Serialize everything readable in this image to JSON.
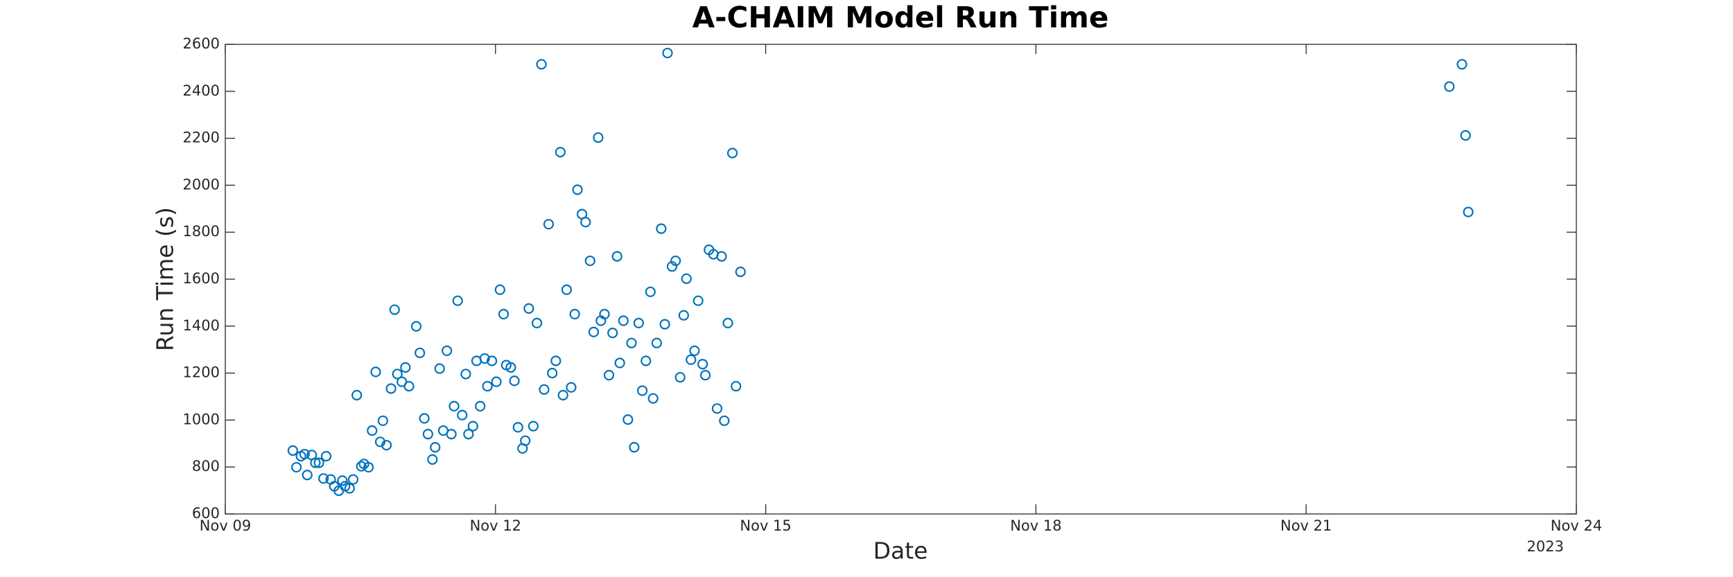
{
  "chart_data": {
    "type": "scatter",
    "title": "A-CHAIM Model Run Time",
    "x_label": "Date",
    "y_label": "Run Time (s)",
    "x_offset_label": "2023",
    "series": [
      {
        "color": "#0072bd",
        "x": [
          0.75,
          0.79,
          0.84,
          0.88,
          0.91,
          0.96,
          1.0,
          1.04,
          1.09,
          1.12,
          1.17,
          1.21,
          1.26,
          1.3,
          1.33,
          1.38,
          1.42,
          1.46,
          1.51,
          1.54,
          1.59,
          1.63,
          1.67,
          1.72,
          1.75,
          1.79,
          1.84,
          1.88,
          1.91,
          1.96,
          2.0,
          2.04,
          2.12,
          2.16,
          2.21,
          2.25,
          2.3,
          2.33,
          2.38,
          2.42,
          2.46,
          2.51,
          2.54,
          2.58,
          2.63,
          2.67,
          2.7,
          2.75,
          2.79,
          2.83,
          2.88,
          2.91,
          2.96,
          3.01,
          3.05,
          3.09,
          3.12,
          3.17,
          3.21,
          3.25,
          3.3,
          3.33,
          3.37,
          3.42,
          3.46,
          3.51,
          3.54,
          3.59,
          3.63,
          3.67,
          3.72,
          3.75,
          3.79,
          3.84,
          3.88,
          3.91,
          3.96,
          4.0,
          4.05,
          4.09,
          4.14,
          4.17,
          4.21,
          4.26,
          4.3,
          4.35,
          4.38,
          4.42,
          4.47,
          4.51,
          4.54,
          4.59,
          4.63,
          4.67,
          4.72,
          4.75,
          4.79,
          4.84,
          4.88,
          4.91,
          4.96,
          5.0,
          5.05,
          5.09,
          5.12,
          5.17,
          5.21,
          5.25,
          5.3,
          5.33,
          5.37,
          5.42,
          5.46,
          5.51,
          5.54,
          5.58,
          5.63,
          5.67,
          5.72,
          13.59,
          13.73,
          13.77,
          13.8
        ],
        "values": [
          870,
          799,
          846,
          855,
          766,
          851,
          818,
          818,
          751,
          846,
          747,
          718,
          699,
          742,
          718,
          709,
          747,
          1106,
          803,
          813,
          799,
          955,
          1205,
          907,
          997,
          893,
          1134,
          1470,
          1196,
          1163,
          1224,
          1144,
          1399,
          1286,
          1007,
          940,
          832,
          884,
          1219,
          955,
          1295,
          940,
          1059,
          1508,
          1021,
          1196,
          940,
          974,
          1252,
          1059,
          1262,
          1144,
          1252,
          1163,
          1555,
          1451,
          1234,
          1224,
          1167,
          969,
          879,
          912,
          1475,
          974,
          1413,
          2515,
          1130,
          1834,
          1200,
          1252,
          2141,
          1106,
          1555,
          1139,
          1451,
          1981,
          1877,
          1843,
          1678,
          1375,
          2203,
          1423,
          1451,
          1191,
          1371,
          1697,
          1243,
          1423,
          1002,
          1328,
          884,
          1413,
          1125,
          1252,
          1546,
          1092,
          1328,
          1815,
          1408,
          2563,
          1654,
          1678,
          1182,
          1446,
          1602,
          1257,
          1295,
          1508,
          1238,
          1191,
          1725,
          1706,
          1049,
          1697,
          997,
          1413,
          2137,
          1144,
          1631,
          2420,
          2515,
          2212,
          1886
        ]
      }
    ],
    "xlim": [
      0,
      15
    ],
    "xticks": [
      {
        "value": 0,
        "label": "Nov 09"
      },
      {
        "value": 3,
        "label": "Nov 12"
      },
      {
        "value": 6,
        "label": "Nov 15"
      },
      {
        "value": 9,
        "label": "Nov 18"
      },
      {
        "value": 12,
        "label": "Nov 21"
      },
      {
        "value": 15,
        "label": "Nov 24"
      }
    ],
    "ylim": [
      600,
      2600
    ],
    "yticks": [
      600,
      800,
      1000,
      1200,
      1400,
      1600,
      1800,
      2000,
      2200,
      2400,
      2600
    ],
    "grid": false
  }
}
